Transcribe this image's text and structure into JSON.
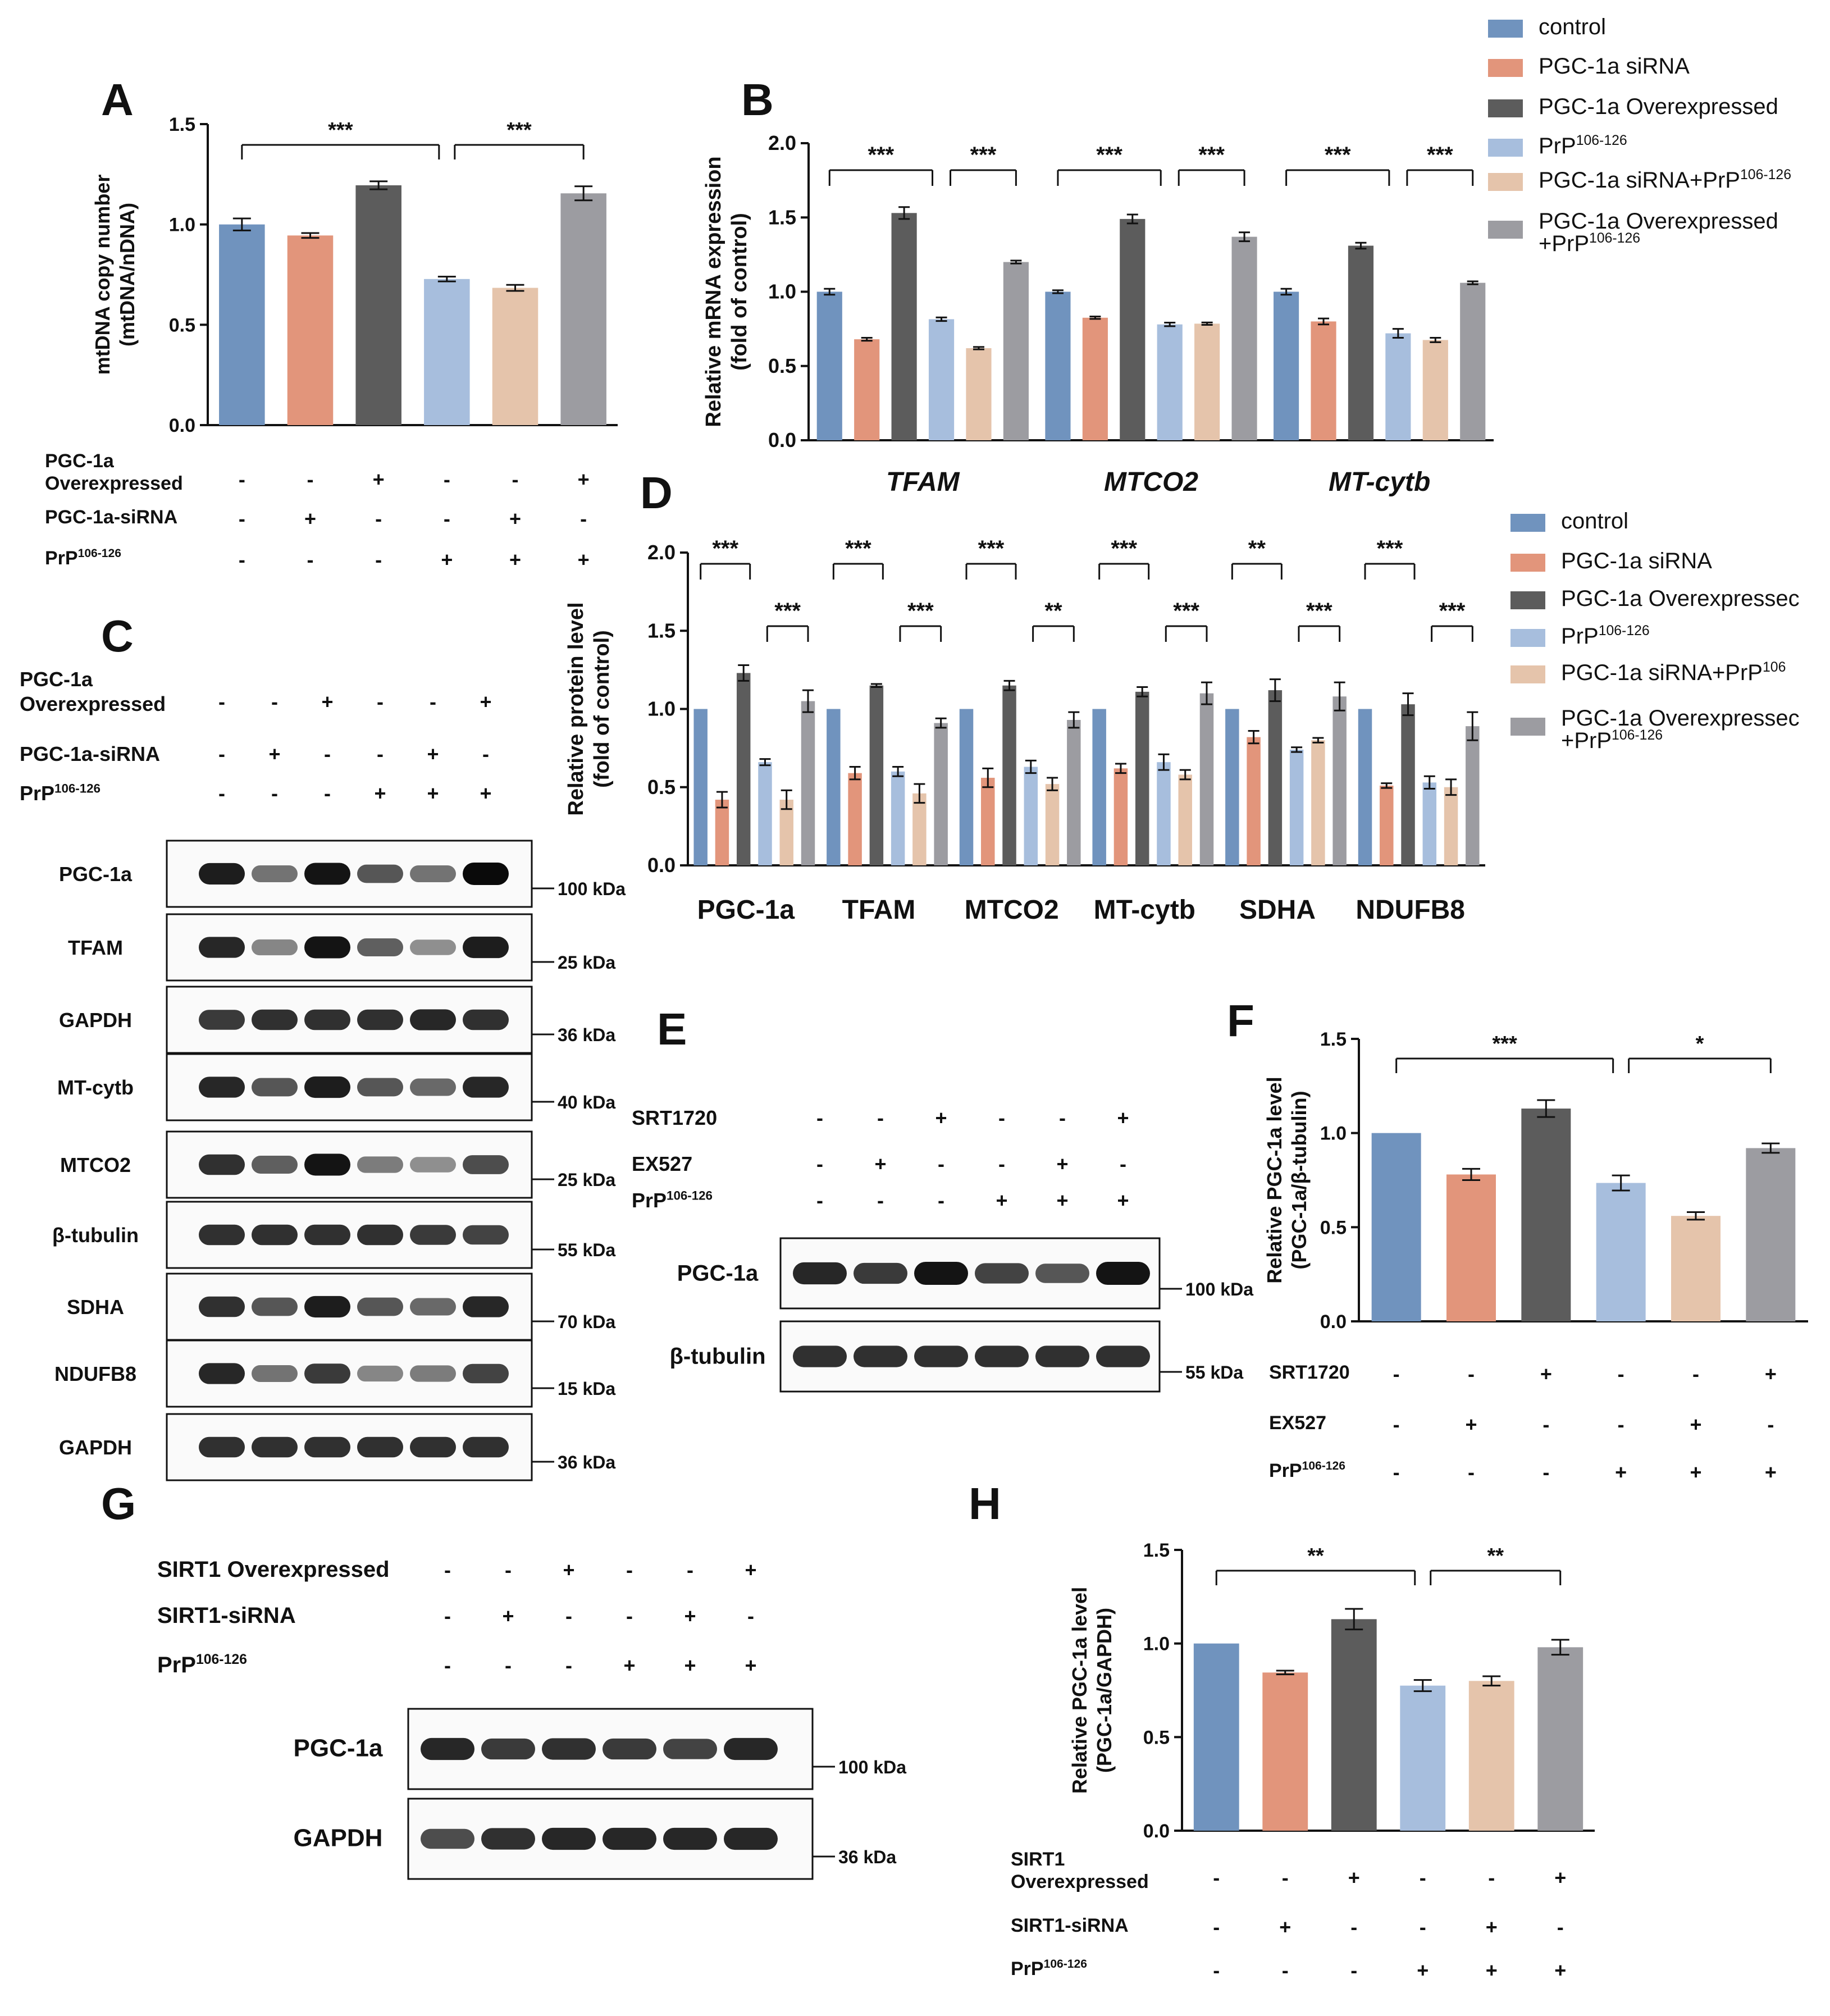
{
  "colors": {
    "control": "#7093be",
    "pgc_sirna": "#e2957b",
    "pgc_over": "#5c5c5c",
    "prp": "#a7bedd",
    "pgc_sirna_prp": "#e5c4ab",
    "pgc_over_prp": "#9c9ca1"
  },
  "legend_top": {
    "items": [
      {
        "label": "control",
        "color_key": "control"
      },
      {
        "label": "PGC-1a siRNA",
        "color_key": "pgc_sirna"
      },
      {
        "label": "PGC-1a Overexpressed",
        "color_key": "pgc_over"
      },
      {
        "label": "PrP",
        "sup": "106-126",
        "color_key": "prp"
      },
      {
        "label": "PGC-1a siRNA+PrP",
        "sup": "106-126",
        "color_key": "pgc_sirna_prp"
      },
      {
        "label": "PGC-1a Overexpressed",
        "label2": "+PrP",
        "sup": "106-126",
        "color_key": "pgc_over_prp"
      }
    ]
  },
  "legend_d": {
    "items": [
      {
        "label": "control",
        "color_key": "control"
      },
      {
        "label": "PGC-1a siRNA",
        "color_key": "pgc_sirna"
      },
      {
        "label": "PGC-1a Overexpressec",
        "color_key": "pgc_over"
      },
      {
        "label": "PrP",
        "sup": "106-126",
        "color_key": "prp"
      },
      {
        "label": "PGC-1a siRNA+PrP",
        "sup": "106",
        "color_key": "pgc_sirna_prp"
      },
      {
        "label": "PGC-1a Overexpressec",
        "label2": "+PrP",
        "sup": "106-126",
        "color_key": "pgc_over_prp"
      }
    ]
  },
  "chart_data": [
    {
      "id": "A",
      "type": "bar",
      "ylabel": "mtDNA copy number",
      "ylabel2": "(mtDNA/nDNA)",
      "ylim": [
        0,
        1.5
      ],
      "yticks": [
        "0.0",
        "0.5",
        "1.0",
        "1.5"
      ],
      "values": [
        1.0,
        0.945,
        1.195,
        0.728,
        0.684,
        1.155
      ],
      "errors": [
        0.03,
        0.012,
        0.02,
        0.012,
        0.015,
        0.035
      ],
      "sig": [
        {
          "label": "***",
          "from": 0,
          "to": 3
        },
        {
          "label": "***",
          "from": 3,
          "to": 5
        }
      ],
      "conditions": [
        {
          "label": "PGC-1a",
          "label2": "Overexpressed",
          "signs": [
            "-",
            "-",
            "+",
            "-",
            "-",
            "+"
          ]
        },
        {
          "label": "PGC-1a-siRNA",
          "signs": [
            "-",
            "+",
            "-",
            "-",
            "+",
            "-"
          ]
        },
        {
          "label": "PrP",
          "sup": "106-126",
          "signs": [
            "-",
            "-",
            "-",
            "+",
            "+",
            "+"
          ]
        }
      ]
    },
    {
      "id": "B",
      "type": "bar",
      "ylabel": "Relative  mRNA expression",
      "ylabel2": "(fold of control)",
      "ylim": [
        0,
        2.0
      ],
      "yticks": [
        "0.0",
        "0.5",
        "1.0",
        "1.5",
        "2.0"
      ],
      "categories": [
        "TFAM",
        "MTCO2",
        "MT-cytb"
      ],
      "series": [
        {
          "name": "control",
          "values": [
            1.0,
            1.0,
            1.0
          ],
          "errors": [
            0.02,
            0.01,
            0.02
          ]
        },
        {
          "name": "PGC-1a siRNA",
          "values": [
            0.68,
            0.825,
            0.8
          ],
          "errors": [
            0.01,
            0.008,
            0.02
          ]
        },
        {
          "name": "PGC-1a Overexpressed",
          "values": [
            1.53,
            1.49,
            1.31
          ],
          "errors": [
            0.04,
            0.03,
            0.02
          ]
        },
        {
          "name": "PrP106-126",
          "values": [
            0.815,
            0.78,
            0.72
          ],
          "errors": [
            0.012,
            0.012,
            0.03
          ]
        },
        {
          "name": "PGC-1a siRNA+PrP106-126",
          "values": [
            0.62,
            0.785,
            0.675
          ],
          "errors": [
            0.008,
            0.008,
            0.015
          ]
        },
        {
          "name": "PGC-1a Overexpressed+PrP106-126",
          "values": [
            1.2,
            1.37,
            1.06
          ],
          "errors": [
            0.01,
            0.03,
            0.01
          ]
        }
      ],
      "sig": [
        {
          "group": 0,
          "label": "***",
          "from": 0,
          "to": 3,
          "level": 0
        },
        {
          "group": 0,
          "label": "***",
          "from": 3,
          "to": 5,
          "level": 0
        },
        {
          "group": 1,
          "label": "***",
          "from": 0,
          "to": 3,
          "level": 0
        },
        {
          "group": 1,
          "label": "***",
          "from": 3,
          "to": 5,
          "level": 0
        },
        {
          "group": 2,
          "label": "***",
          "from": 0,
          "to": 3,
          "level": 0
        },
        {
          "group": 2,
          "label": "***",
          "from": 3,
          "to": 5,
          "level": 0
        }
      ]
    },
    {
      "id": "D",
      "type": "bar",
      "ylabel": "Relative protein level",
      "ylabel2": "(fold of control)",
      "ylim": [
        0,
        2.0
      ],
      "yticks": [
        "0.0",
        "0.5",
        "1.0",
        "1.5",
        "2.0"
      ],
      "categories": [
        "PGC-1a",
        "TFAM",
        "MTCO2",
        "MT-cytb",
        "SDHA",
        "NDUFB8"
      ],
      "series": [
        {
          "name": "control",
          "values": [
            1.0,
            1.0,
            1.0,
            1.0,
            1.0,
            1.0
          ],
          "errors": [
            0,
            0,
            0,
            0,
            0,
            0
          ]
        },
        {
          "name": "PGC-1a siRNA",
          "values": [
            0.42,
            0.59,
            0.56,
            0.62,
            0.82,
            0.51
          ],
          "errors": [
            0.05,
            0.04,
            0.06,
            0.03,
            0.04,
            0.015
          ]
        },
        {
          "name": "PGC-1a Overexpressed",
          "values": [
            1.23,
            1.15,
            1.15,
            1.11,
            1.12,
            1.03
          ],
          "errors": [
            0.05,
            0.01,
            0.03,
            0.03,
            0.07,
            0.07
          ]
        },
        {
          "name": "PrP106-126",
          "values": [
            0.66,
            0.6,
            0.63,
            0.66,
            0.74,
            0.53
          ],
          "errors": [
            0.02,
            0.03,
            0.04,
            0.05,
            0.015,
            0.04
          ]
        },
        {
          "name": "PGC-1a siRNA+PrP106-126",
          "values": [
            0.42,
            0.46,
            0.52,
            0.58,
            0.8,
            0.5
          ],
          "errors": [
            0.06,
            0.06,
            0.04,
            0.03,
            0.015,
            0.05
          ]
        },
        {
          "name": "PGC-1a Overexpressed+PrP106-126",
          "values": [
            1.05,
            0.91,
            0.93,
            1.1,
            1.08,
            0.89
          ],
          "errors": [
            0.07,
            0.03,
            0.05,
            0.07,
            0.09,
            0.09
          ]
        }
      ],
      "sig": [
        {
          "group": 0,
          "label": "***",
          "from": 0,
          "to": 1,
          "level": 1
        },
        {
          "group": 0,
          "label": "***",
          "from": 1,
          "to": 2,
          "level": 0
        },
        {
          "group": 1,
          "label": "***",
          "from": 0,
          "to": 1,
          "level": 1
        },
        {
          "group": 1,
          "label": "***",
          "from": 1,
          "to": 2,
          "level": 0
        },
        {
          "group": 2,
          "label": "***",
          "from": 0,
          "to": 1,
          "level": 1
        },
        {
          "group": 2,
          "label": "**",
          "from": 1,
          "to": 2,
          "level": 0
        },
        {
          "group": 3,
          "label": "***",
          "from": 0,
          "to": 1,
          "level": 1
        },
        {
          "group": 3,
          "label": "***",
          "from": 1,
          "to": 2,
          "level": 0
        },
        {
          "group": 4,
          "label": "**",
          "from": 0,
          "to": 1,
          "level": 1
        },
        {
          "group": 4,
          "label": "***",
          "from": 1,
          "to": 2,
          "level": 0
        },
        {
          "group": 5,
          "label": "***",
          "from": 0,
          "to": 1,
          "level": 1
        },
        {
          "group": 5,
          "label": "***",
          "from": 1,
          "to": 2,
          "level": 0
        }
      ]
    },
    {
      "id": "F",
      "type": "bar",
      "ylabel": "Relative PGC-1a level",
      "ylabel2": "(PGC-1a/β-tubulin)",
      "ylim": [
        0,
        1.5
      ],
      "yticks": [
        "0.0",
        "0.5",
        "1.0",
        "1.5"
      ],
      "values": [
        1.0,
        0.78,
        1.13,
        0.735,
        0.56,
        0.92
      ],
      "errors": [
        0,
        0.03,
        0.045,
        0.04,
        0.02,
        0.025
      ],
      "sig": [
        {
          "label": "***",
          "from": 0,
          "to": 3
        },
        {
          "label": "*",
          "from": 3,
          "to": 5
        }
      ],
      "conditions": [
        {
          "label": "SRT1720",
          "signs": [
            "-",
            "-",
            "+",
            "-",
            "-",
            "+"
          ]
        },
        {
          "label": "EX527",
          "signs": [
            "-",
            "+",
            "-",
            "-",
            "+",
            "-"
          ]
        },
        {
          "label": "PrP",
          "sup": "106-126",
          "signs": [
            "-",
            "-",
            "-",
            "+",
            "+",
            "+"
          ]
        }
      ]
    },
    {
      "id": "H",
      "type": "bar",
      "ylabel": "Relative PGC-1a level",
      "ylabel2": "(PGC-1a/GAPDH)",
      "ylim": [
        0,
        1.5
      ],
      "yticks": [
        "0.0",
        "0.5",
        "1.0",
        "1.5"
      ],
      "values": [
        1.0,
        0.845,
        1.13,
        0.775,
        0.8,
        0.98
      ],
      "errors": [
        0,
        0.01,
        0.055,
        0.03,
        0.025,
        0.04
      ],
      "sig": [
        {
          "label": "**",
          "from": 0,
          "to": 3
        },
        {
          "label": "**",
          "from": 3,
          "to": 5
        }
      ],
      "conditions": [
        {
          "label": "SIRT1",
          "label2": "Overexpressed",
          "signs": [
            "-",
            "-",
            "+",
            "-",
            "-",
            "+"
          ]
        },
        {
          "label": "SIRT1-siRNA",
          "signs": [
            "-",
            "+",
            "-",
            "-",
            "+",
            "-"
          ]
        },
        {
          "label": "PrP",
          "sup": "106-126",
          "signs": [
            "-",
            "-",
            "-",
            "+",
            "+",
            "+"
          ]
        }
      ]
    }
  ],
  "blots": {
    "C": {
      "conditions": [
        {
          "label": "PGC-1a",
          "label2": "Overexpressed",
          "signs": [
            "-",
            "-",
            "+",
            "-",
            "-",
            "+"
          ]
        },
        {
          "label": "PGC-1a-siRNA",
          "signs": [
            "-",
            "+",
            "-",
            "-",
            "+",
            "-"
          ]
        },
        {
          "label": "PrP",
          "sup": "106-126",
          "signs": [
            "-",
            "-",
            "-",
            "+",
            "+",
            "+"
          ]
        }
      ],
      "rows": [
        {
          "name": "PGC-1a",
          "kda": "100 kDa",
          "intensity": [
            0.9,
            0.45,
            0.95,
            0.6,
            0.45,
            1.0
          ]
        },
        {
          "name": "TFAM",
          "kda": "25 kDa",
          "intensity": [
            0.85,
            0.35,
            0.95,
            0.55,
            0.3,
            0.9
          ]
        },
        {
          "name": "GAPDH",
          "kda": "36 kDa",
          "intensity": [
            0.75,
            0.8,
            0.8,
            0.8,
            0.85,
            0.8
          ]
        },
        {
          "name": "MT-cytb",
          "kda": "40 kDa",
          "intensity": [
            0.85,
            0.6,
            0.9,
            0.6,
            0.5,
            0.85
          ]
        },
        {
          "name": "MTCO2",
          "kda": "25 kDa",
          "intensity": [
            0.8,
            0.55,
            0.95,
            0.4,
            0.3,
            0.65
          ]
        },
        {
          "name": "β-tubulin",
          "kda": "55 kDa",
          "intensity": [
            0.8,
            0.8,
            0.8,
            0.8,
            0.75,
            0.7
          ]
        },
        {
          "name": "SDHA",
          "kda": "70 kDa",
          "intensity": [
            0.8,
            0.6,
            0.9,
            0.6,
            0.5,
            0.85
          ]
        },
        {
          "name": "NDUFB8",
          "kda": "15 kDa",
          "intensity": [
            0.85,
            0.45,
            0.75,
            0.35,
            0.4,
            0.7
          ]
        },
        {
          "name": "GAPDH",
          "kda": "36 kDa",
          "intensity": [
            0.8,
            0.8,
            0.8,
            0.8,
            0.8,
            0.8
          ]
        }
      ]
    },
    "E": {
      "conditions": [
        {
          "label": "SRT1720",
          "signs": [
            "-",
            "-",
            "+",
            "-",
            "-",
            "+"
          ]
        },
        {
          "label": "EX527",
          "signs": [
            "-",
            "+",
            "-",
            "-",
            "+",
            "-"
          ]
        },
        {
          "label": "PrP",
          "sup": "106-126",
          "signs": [
            "-",
            "-",
            "-",
            "+",
            "+",
            "+"
          ]
        }
      ],
      "rows": [
        {
          "name": "PGC-1a",
          "kda": "100 kDa",
          "intensity": [
            0.85,
            0.75,
            0.95,
            0.7,
            0.6,
            0.95
          ]
        },
        {
          "name": "β-tubulin",
          "kda": "55 kDa",
          "intensity": [
            0.8,
            0.8,
            0.8,
            0.8,
            0.8,
            0.8
          ]
        }
      ]
    },
    "G": {
      "conditions": [
        {
          "label": "SIRT1 Overexpressed",
          "signs": [
            "-",
            "-",
            "+",
            "-",
            "-",
            "+"
          ]
        },
        {
          "label": "SIRT1-siRNA",
          "signs": [
            "-",
            "+",
            "-",
            "-",
            "+",
            "-"
          ]
        },
        {
          "label": "PrP",
          "sup": "106-126",
          "signs": [
            "-",
            "-",
            "-",
            "+",
            "+",
            "+"
          ]
        }
      ],
      "rows": [
        {
          "name": "PGC-1a",
          "kda": "100 kDa",
          "intensity": [
            0.85,
            0.75,
            0.8,
            0.75,
            0.7,
            0.85
          ]
        },
        {
          "name": "GAPDH",
          "kda": "36 kDa",
          "intensity": [
            0.65,
            0.8,
            0.85,
            0.85,
            0.85,
            0.85
          ]
        }
      ]
    }
  },
  "panel_labels": [
    "A",
    "B",
    "C",
    "D",
    "E",
    "F",
    "G",
    "H"
  ]
}
